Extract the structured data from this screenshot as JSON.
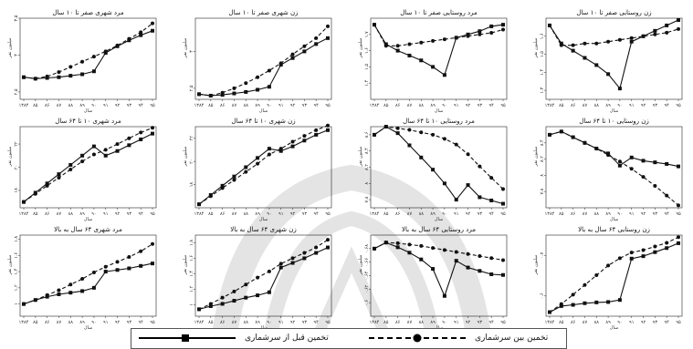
{
  "legend": {
    "before_census_label": "تخمین قبل از سرشماری",
    "between_census_label": "تخمین بین سرشماری"
  },
  "xticks": [
    "۱۳۸۴",
    "۸۵",
    "۸۶",
    "۸۷",
    "۸۸",
    "۸۹",
    "۹۰",
    "۹۱",
    "۹۲",
    "۹۳",
    "۹۴",
    "۹۵"
  ],
  "xlabel": "سال",
  "ylabel": "میلیون نفر",
  "chart_data": [
    {
      "type": "line",
      "title": "مرد شهری صفر تا ۱۰ سال",
      "ylim": [
        2.4,
        3.5
      ],
      "yticks": [
        "۲.۵",
        "۳",
        "۳.۵"
      ],
      "series": [
        {
          "name": "تخمین قبل از سرشماری",
          "values": [
            2.7,
            2.68,
            2.69,
            2.7,
            2.72,
            2.74,
            2.78,
            3.03,
            3.12,
            3.2,
            3.27,
            3.33
          ]
        },
        {
          "name": "تخمین بین سرشماری",
          "values": [
            2.7,
            2.68,
            2.71,
            2.77,
            2.84,
            2.91,
            2.98,
            3.05,
            3.13,
            3.22,
            3.31,
            3.43
          ]
        }
      ]
    },
    {
      "type": "line",
      "title": "زن شهری صفر تا ۱۰ سال",
      "ylim": [
        2.35,
        3.45
      ],
      "yticks": [
        "۲.۵",
        "۳"
      ],
      "series": [
        {
          "name": "تخمین قبل از سرشماری",
          "values": [
            2.42,
            2.4,
            2.41,
            2.43,
            2.45,
            2.48,
            2.52,
            2.82,
            2.91,
            3.0,
            3.1,
            3.18
          ]
        },
        {
          "name": "تخمین بین سرشماری",
          "values": [
            2.42,
            2.4,
            2.44,
            2.5,
            2.57,
            2.65,
            2.74,
            2.84,
            2.96,
            3.07,
            3.18,
            3.34
          ]
        }
      ]
    },
    {
      "type": "line",
      "title": "مرد روستایی صفر تا ۱۰ سال",
      "ylim": [
        1.3,
        1.8
      ],
      "yticks": [
        "۱.۴",
        "۱.۵",
        "۱.۶",
        "۱.۷"
      ],
      "series": [
        {
          "name": "تخمین قبل از سرشماری",
          "values": [
            1.76,
            1.64,
            1.6,
            1.57,
            1.54,
            1.5,
            1.45,
            1.68,
            1.7,
            1.72,
            1.75,
            1.76
          ]
        },
        {
          "name": "تخمین بین سرشماری",
          "values": [
            1.76,
            1.63,
            1.63,
            1.64,
            1.65,
            1.66,
            1.67,
            1.68,
            1.69,
            1.7,
            1.71,
            1.73
          ]
        }
      ]
    },
    {
      "type": "line",
      "title": "زن روستایی صفر تا ۱۰ سال",
      "ylim": [
        1.25,
        1.7
      ],
      "yticks": [
        "۱.۳",
        "۱.۴",
        "۱.۵",
        "۱.۶"
      ],
      "series": [
        {
          "name": "تخمین قبل از سرشماری",
          "values": [
            1.66,
            1.56,
            1.52,
            1.48,
            1.44,
            1.39,
            1.31,
            1.57,
            1.6,
            1.63,
            1.66,
            1.69
          ]
        },
        {
          "name": "تخمین بین سرشماری",
          "values": [
            1.66,
            1.55,
            1.55,
            1.56,
            1.56,
            1.57,
            1.58,
            1.59,
            1.6,
            1.61,
            1.62,
            1.64
          ]
        }
      ]
    },
    {
      "type": "line",
      "title": "مرد شهری ۱۰ تا ۶۴ سال",
      "ylim": [
        16.5,
        23.5
      ],
      "yticks": [
        "۱۸",
        "۲۰",
        "۲۲"
      ],
      "series": [
        {
          "name": "تخمین قبل از سرشماری",
          "values": [
            17,
            17.8,
            18.6,
            19.4,
            20.2,
            21,
            21.8,
            21,
            21.4,
            21.9,
            22.4,
            22.9
          ]
        },
        {
          "name": "تخمین بین سرشماری",
          "values": [
            17,
            17.7,
            18.4,
            19.1,
            19.8,
            20.5,
            21.1,
            21.5,
            22,
            22.5,
            23,
            23.4
          ]
        }
      ]
    },
    {
      "type": "line",
      "title": "زن شهری ۱۰ تا ۶۴ سال",
      "ylim": [
        16,
        23
      ],
      "yticks": [
        "۱۸",
        "۲۰",
        "۲۲"
      ],
      "series": [
        {
          "name": "تخمین قبل از سرشماری",
          "values": [
            16.3,
            17.1,
            17.9,
            18.7,
            19.5,
            20.3,
            21.1,
            20.9,
            21.3,
            21.8,
            22.3,
            22.7
          ]
        },
        {
          "name": "تخمین بین سرشماری",
          "values": [
            16.3,
            17.0,
            17.7,
            18.4,
            19.1,
            19.8,
            20.6,
            21.1,
            21.7,
            22.2,
            22.7,
            23.1
          ]
        }
      ]
    },
    {
      "type": "line",
      "title": "مرد روستایی ۱۰ تا ۶۴ سال",
      "ylim": [
        7.7,
        8.7
      ],
      "yticks": [
        "۷.۸",
        "۸",
        "۸.۲",
        "۸.۴",
        "۸.۶"
      ],
      "series": [
        {
          "name": "تخمین قبل از سرشماری",
          "values": [
            8.6,
            8.7,
            8.62,
            8.47,
            8.32,
            8.17,
            8.0,
            7.8,
            7.98,
            7.83,
            7.79,
            7.75
          ]
        },
        {
          "name": "تخمین بین سرشماری",
          "values": [
            8.6,
            8.7,
            8.68,
            8.66,
            8.63,
            8.6,
            8.55,
            8.48,
            8.36,
            8.21,
            8.07,
            7.93
          ]
        }
      ]
    },
    {
      "type": "line",
      "title": "زن روستایی ۱۰ تا ۶۴ سال",
      "ylim": [
        7.6,
        8.6
      ],
      "yticks": [
        "۷.۸",
        "۸",
        "۸.۲",
        "۸.۴"
      ],
      "series": [
        {
          "name": "تخمین قبل از سرشماری",
          "values": [
            8.5,
            8.54,
            8.47,
            8.4,
            8.33,
            8.27,
            8.12,
            8.22,
            8.18,
            8.16,
            8.14,
            8.11
          ]
        },
        {
          "name": "تخمین بین سرشماری",
          "values": [
            8.5,
            8.54,
            8.47,
            8.4,
            8.33,
            8.25,
            8.17,
            8.08,
            7.98,
            7.87,
            7.75,
            7.63
          ]
        }
      ]
    },
    {
      "type": "line",
      "title": "مرد شهری ۶۴ سال به بالا",
      "ylim": [
        0.85,
        1.85
      ],
      "yticks": [
        "۱",
        "۱.۲",
        "۱.۴",
        "۱.۶",
        "۱.۸"
      ],
      "series": [
        {
          "name": "تخمین قبل از سرشماری",
          "values": [
            1.0,
            1.05,
            1.09,
            1.12,
            1.14,
            1.16,
            1.2,
            1.4,
            1.42,
            1.44,
            1.47,
            1.5
          ]
        },
        {
          "name": "تخمین بین سرشماری",
          "values": [
            1.0,
            1.05,
            1.11,
            1.17,
            1.24,
            1.31,
            1.39,
            1.46,
            1.52,
            1.58,
            1.65,
            1.74
          ]
        }
      ]
    },
    {
      "type": "line",
      "title": "زن شهری ۶۴ سال به بالا",
      "ylim": [
        0.85,
        1.9
      ],
      "yticks": [
        "۱",
        "۱.۲",
        "۱.۴",
        "۱.۶",
        "۱.۸"
      ],
      "series": [
        {
          "name": "تخمین قبل از سرشماری",
          "values": [
            0.94,
            0.98,
            1.01,
            1.05,
            1.09,
            1.12,
            1.16,
            1.48,
            1.54,
            1.6,
            1.67,
            1.74
          ]
        },
        {
          "name": "تخمین بین سرشماری",
          "values": [
            0.94,
            1.01,
            1.09,
            1.17,
            1.26,
            1.35,
            1.43,
            1.53,
            1.6,
            1.67,
            1.74,
            1.84
          ]
        }
      ]
    },
    {
      "type": "line",
      "title": "مرد روستایی ۶۴ سال به بالا",
      "ylim": [
        0.58,
        0.7
      ],
      "yticks": [
        "۰.۶",
        "۰.۶۲",
        "۰.۶۴",
        "۰.۶۶",
        "۰.۶۸"
      ],
      "series": [
        {
          "name": "تخمین قبل از سرشماری",
          "values": [
            0.68,
            0.689,
            0.682,
            0.674,
            0.664,
            0.65,
            0.61,
            0.662,
            0.652,
            0.647,
            0.642,
            0.641
          ]
        },
        {
          "name": "تخمین بین سرشماری",
          "values": [
            0.68,
            0.689,
            0.688,
            0.686,
            0.684,
            0.681,
            0.678,
            0.675,
            0.672,
            0.669,
            0.666,
            0.663
          ]
        }
      ]
    },
    {
      "type": "line",
      "title": "زن روستایی ۶۴ سال به بالا",
      "ylim": [
        0.55,
        0.75
      ],
      "yticks": [
        "۰.۶",
        "۰.۷"
      ],
      "series": [
        {
          "name": "تخمین قبل از سرشماری",
          "values": [
            0.56,
            0.575,
            0.578,
            0.582,
            0.584,
            0.585,
            0.59,
            0.692,
            0.698,
            0.708,
            0.718,
            0.73
          ]
        },
        {
          "name": "تخمین بین سرشماری",
          "values": [
            0.56,
            0.58,
            0.603,
            0.627,
            0.651,
            0.675,
            0.693,
            0.707,
            0.713,
            0.722,
            0.731,
            0.745
          ]
        }
      ]
    }
  ]
}
